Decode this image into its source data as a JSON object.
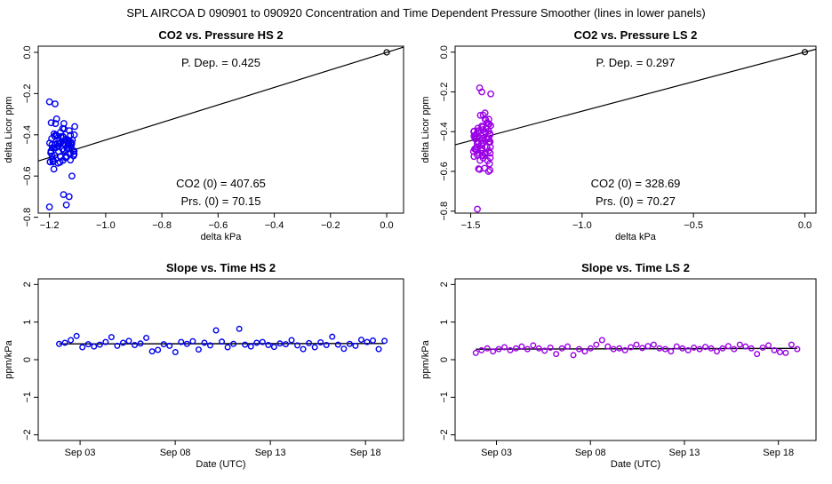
{
  "suptitle": "SPL   AIRCOA D   090901 to 090920   Concentration and Time Dependent Pressure Smoother (lines in lower panels)",
  "chart_data": [
    {
      "id": "p1",
      "type": "scatter",
      "title": "CO2 vs. Pressure HS 2",
      "xlabel": "delta kPa",
      "ylabel": "delta Licor ppm",
      "xlim": [
        -1.24,
        0.06
      ],
      "ylim": [
        -0.78,
        0.03
      ],
      "xticks": [
        -1.2,
        -1.0,
        -0.8,
        -0.6,
        -0.4,
        -0.2,
        0.0
      ],
      "xticklabels": [
        "−1.2",
        "−1.0",
        "−0.8",
        "−0.6",
        "−0.4",
        "−0.2",
        "0.0"
      ],
      "yticks": [
        0.0,
        -0.2,
        -0.4,
        -0.6,
        -0.8
      ],
      "yticklabels": [
        "0.0",
        "−0.2",
        "−0.4",
        "−0.6",
        "−0.8"
      ],
      "color": "#0000ee",
      "seed": 7,
      "cluster": {
        "xmin": -1.2,
        "xmax": -1.11,
        "ymean": -0.46,
        "yspread": 0.09,
        "count": 70
      },
      "extra_points": [
        [
          -1.2,
          -0.24
        ],
        [
          -1.18,
          -0.25
        ],
        [
          -1.2,
          -0.75
        ],
        [
          -1.14,
          -0.74
        ],
        [
          -1.13,
          -0.7
        ],
        [
          -1.15,
          -0.69
        ],
        [
          -1.11,
          -0.36
        ],
        [
          -1.12,
          -0.6
        ]
      ],
      "ref_point": [
        0.0,
        0.0
      ],
      "fit_line": {
        "slope": 0.425,
        "intercept": 0.0
      },
      "annotations": {
        "pdep": "P. Dep. =  0.425",
        "co2": "CO2 (0) =  407.65",
        "prs": "Prs. (0) = 70.15"
      }
    },
    {
      "id": "p2",
      "type": "scatter",
      "title": "CO2 vs. Pressure LS 2",
      "xlabel": "delta kPa",
      "ylabel": "delta Licor ppm",
      "xlim": [
        -1.57,
        0.05
      ],
      "ylim": [
        -0.81,
        0.03
      ],
      "xticks": [
        -1.5,
        -1.0,
        -0.5,
        0.0
      ],
      "xticklabels": [
        "−1.5",
        "−1.0",
        "−0.5",
        "0.0"
      ],
      "yticks": [
        0.0,
        -0.2,
        -0.4,
        -0.6,
        -0.8
      ],
      "yticklabels": [
        "0.0",
        "−0.2",
        "−0.4",
        "−0.6",
        "−0.8"
      ],
      "color": "#9a00e6",
      "seed": 13,
      "cluster": {
        "xmin": -1.49,
        "xmax": -1.41,
        "ymean": -0.44,
        "yspread": 0.09,
        "count": 70
      },
      "extra_points": [
        [
          -1.46,
          -0.18
        ],
        [
          -1.45,
          -0.2
        ],
        [
          -1.41,
          -0.21
        ],
        [
          -1.42,
          -0.6
        ],
        [
          -1.47,
          -0.79
        ],
        [
          -1.46,
          -0.59
        ]
      ],
      "ref_point": [
        0.0,
        0.0
      ],
      "fit_line": {
        "slope": 0.297,
        "intercept": 0.0
      },
      "annotations": {
        "pdep": "P. Dep. =  0.297",
        "co2": "CO2 (0) =  328.69",
        "prs": "Prs. (0) = 70.27"
      }
    },
    {
      "id": "p3",
      "type": "scatter",
      "title": "Slope vs. Time HS 2",
      "xlabel": "Date (UTC)",
      "ylabel": "ppm/kPa",
      "xlim": [
        -0.2,
        19.0
      ],
      "ylim": [
        -2.15,
        2.15
      ],
      "xticks": [
        2,
        7,
        12,
        17
      ],
      "xticklabels": [
        "Sep 03",
        "Sep 08",
        "Sep 13",
        "Sep 18"
      ],
      "yticks": [
        2,
        1,
        0,
        -1,
        -2
      ],
      "yticklabels": [
        "2",
        "1",
        "0",
        "−1",
        "−2"
      ],
      "color": "#0000ee",
      "t_start": 0.9,
      "t_end": 18.0,
      "values": [
        0.42,
        0.45,
        0.52,
        0.63,
        0.33,
        0.41,
        0.35,
        0.4,
        0.47,
        0.6,
        0.37,
        0.45,
        0.5,
        0.39,
        0.43,
        0.58,
        0.22,
        0.26,
        0.41,
        0.37,
        0.2,
        0.47,
        0.42,
        0.49,
        0.27,
        0.45,
        0.38,
        0.78,
        0.48,
        0.33,
        0.42,
        0.82,
        0.4,
        0.35,
        0.45,
        0.47,
        0.39,
        0.34,
        0.43,
        0.41,
        0.52,
        0.38,
        0.28,
        0.44,
        0.33,
        0.46,
        0.39,
        0.61,
        0.4,
        0.29,
        0.42,
        0.37,
        0.53,
        0.47,
        0.51,
        0.28,
        0.5
      ],
      "fit_line": {
        "start": 0.42,
        "end": 0.43
      }
    },
    {
      "id": "p4",
      "type": "scatter",
      "title": "Slope vs. Time LS 2",
      "xlabel": "Date (UTC)",
      "ylabel": "ppm/kPa",
      "xlim": [
        -0.2,
        19.0
      ],
      "ylim": [
        -2.15,
        2.15
      ],
      "xticks": [
        2,
        7,
        12,
        17
      ],
      "xticklabels": [
        "Sep 03",
        "Sep 08",
        "Sep 13",
        "Sep 18"
      ],
      "yticks": [
        2,
        1,
        0,
        -1,
        -2
      ],
      "yticklabels": [
        "2",
        "1",
        "0",
        "−1",
        "−2"
      ],
      "color": "#9a00e6",
      "t_start": 0.9,
      "t_end": 18.0,
      "values": [
        0.18,
        0.25,
        0.3,
        0.22,
        0.28,
        0.33,
        0.25,
        0.3,
        0.35,
        0.28,
        0.38,
        0.3,
        0.24,
        0.32,
        0.15,
        0.3,
        0.35,
        0.12,
        0.28,
        0.22,
        0.3,
        0.4,
        0.52,
        0.35,
        0.28,
        0.3,
        0.25,
        0.33,
        0.4,
        0.31,
        0.36,
        0.4,
        0.3,
        0.28,
        0.22,
        0.35,
        0.3,
        0.25,
        0.32,
        0.28,
        0.34,
        0.3,
        0.22,
        0.3,
        0.36,
        0.28,
        0.4,
        0.35,
        0.3,
        0.15,
        0.32,
        0.38,
        0.25,
        0.2,
        0.18,
        0.4,
        0.28
      ],
      "fit_line": {
        "start": 0.28,
        "end": 0.3
      }
    }
  ]
}
